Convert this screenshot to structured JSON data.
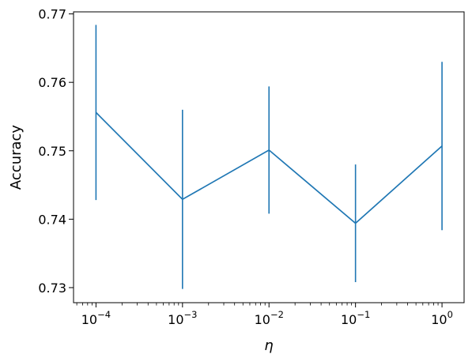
{
  "chart_data": {
    "type": "line",
    "title": "",
    "xlabel": "η",
    "ylabel": "Accuracy",
    "xscale": "log",
    "x": [
      0.0001,
      0.001,
      0.01,
      0.1,
      1
    ],
    "x_tick_labels": [
      {
        "value": 0.0001,
        "base": "10",
        "exp": "−4"
      },
      {
        "value": 0.001,
        "base": "10",
        "exp": "−3"
      },
      {
        "value": 0.01,
        "base": "10",
        "exp": "−2"
      },
      {
        "value": 0.1,
        "base": "10",
        "exp": "−1"
      },
      {
        "value": 1,
        "base": "10",
        "exp": "0"
      }
    ],
    "y_ticks": [
      0.73,
      0.74,
      0.75,
      0.76,
      0.77
    ],
    "y_tick_labels": [
      "0.73",
      "0.74",
      "0.75",
      "0.76",
      "0.77"
    ],
    "xlim": [
      5.5e-05,
      1.8
    ],
    "ylim": [
      0.7278,
      0.7703
    ],
    "grid": false,
    "series": [
      {
        "values": [
          0.7556,
          0.7429,
          0.7501,
          0.7394,
          0.7507
        ],
        "error": [
          0.0128,
          0.0131,
          0.0093,
          0.0086,
          0.0123
        ],
        "color": "#1f77b4"
      }
    ]
  }
}
